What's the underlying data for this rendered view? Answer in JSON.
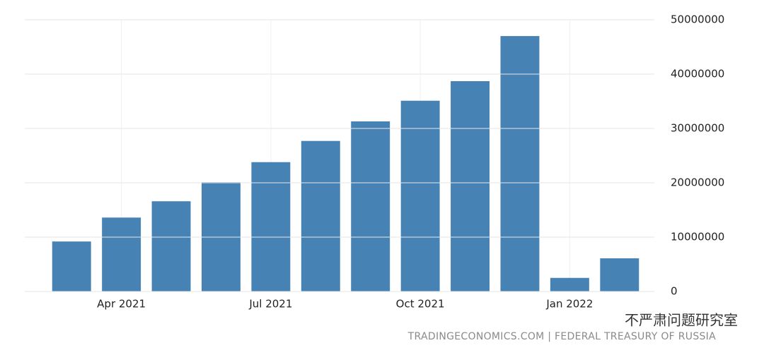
{
  "chart_data": {
    "type": "bar",
    "categories": [
      null,
      "Apr 2021",
      null,
      null,
      "Jul 2021",
      null,
      null,
      "Oct 2021",
      null,
      null,
      "Jan 2022",
      null
    ],
    "values": [
      9200000,
      13600000,
      16600000,
      20100000,
      23800000,
      27700000,
      31300000,
      35100000,
      38700000,
      47000000,
      2500000,
      6100000
    ],
    "color": "#4682b4",
    "ylim": [
      0,
      50000000
    ],
    "yticks": [
      0,
      10000000,
      20000000,
      30000000,
      40000000,
      50000000
    ],
    "grid": true,
    "source": "TRADINGECONOMICS.COM | FEDERAL TREASURY OF RUSSIA",
    "watermark": "不严肃问题研究室"
  }
}
